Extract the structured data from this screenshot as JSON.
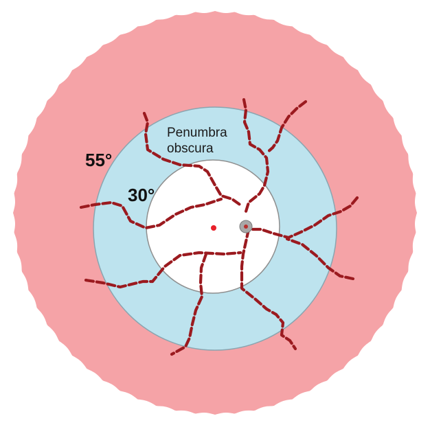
{
  "labels": {
    "outer_angle": "55°",
    "inner_angle": "30°",
    "zone_line1": "Penumbra",
    "zone_line2": "obscura"
  },
  "colors": {
    "outer_zone": "#f5a3a7",
    "penumbra_zone": "#bde3ee",
    "central_zone": "#ffffff",
    "vessels": "#9b1a1f",
    "fovea": "#e8202a",
    "optic_disc": "#a8a8a8"
  }
}
